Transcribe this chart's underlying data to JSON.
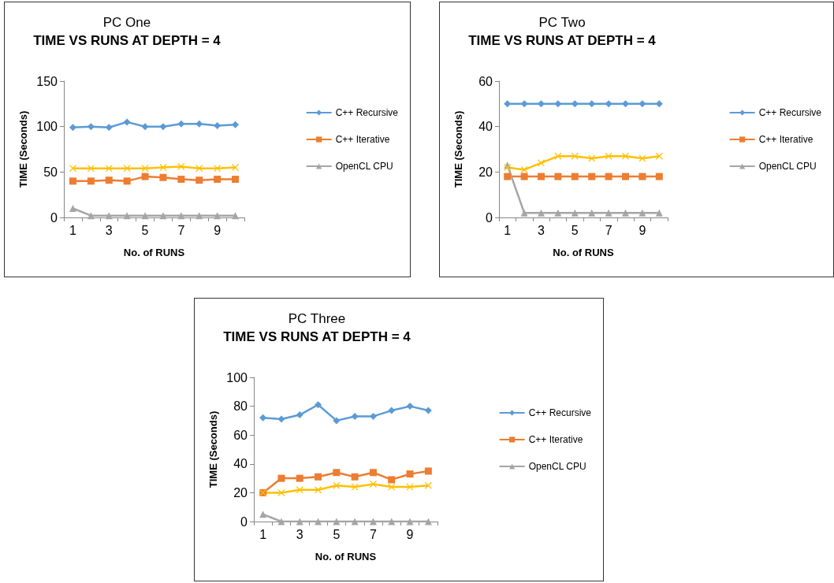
{
  "chart_data": [
    {
      "type": "line",
      "title": "PC One",
      "subtitle": "TIME VS RUNS AT DEPTH = 4",
      "xlabel": "No. of RUNS",
      "ylabel": "TIME (Seconds)",
      "categories": [
        "1",
        null,
        "3",
        null,
        "5",
        null,
        "7",
        null,
        "9",
        null
      ],
      "ylim": [
        0,
        150
      ],
      "yticks": [
        0,
        50,
        100,
        150
      ],
      "grid": false,
      "legend": "right",
      "series": [
        {
          "name": "C++ Recursive",
          "color": "#5b9bd5",
          "marker": "diamond",
          "values": [
            99,
            100,
            99,
            105,
            100,
            100,
            103,
            103,
            101,
            102
          ]
        },
        {
          "name": "C++ Iterative",
          "color": "#ed7d31",
          "marker": "square",
          "values": [
            40,
            40,
            41,
            40,
            45,
            44,
            42,
            41,
            42,
            42
          ]
        },
        {
          "name": "OpenCL CPU",
          "color": "#a5a5a5",
          "marker": "triangle",
          "values": [
            10,
            2,
            2,
            2,
            2,
            2,
            2,
            2,
            2,
            2
          ]
        },
        {
          "color": "#ffc000",
          "marker": "cross",
          "values": [
            54,
            54,
            54,
            54,
            54,
            55,
            56,
            54,
            54,
            55
          ]
        }
      ]
    },
    {
      "type": "line",
      "title": "PC Two",
      "subtitle": "TIME VS RUNS AT DEPTH = 4",
      "xlabel": "No. of RUNS",
      "ylabel": "TIME (Seconds)",
      "categories": [
        "1",
        null,
        "3",
        null,
        "5",
        null,
        "7",
        null,
        "9",
        null
      ],
      "ylim": [
        0,
        60
      ],
      "yticks": [
        0,
        20,
        40,
        60
      ],
      "grid": false,
      "legend": "right",
      "series": [
        {
          "name": "C++ Recursive",
          "color": "#5b9bd5",
          "marker": "diamond",
          "values": [
            50,
            50,
            50,
            50,
            50,
            50,
            50,
            50,
            50,
            50
          ]
        },
        {
          "name": "C++ Iterative",
          "color": "#ed7d31",
          "marker": "square",
          "values": [
            18,
            18,
            18,
            18,
            18,
            18,
            18,
            18,
            18,
            18
          ]
        },
        {
          "name": "OpenCL CPU",
          "color": "#a5a5a5",
          "marker": "triangle",
          "values": [
            23,
            2,
            2,
            2,
            2,
            2,
            2,
            2,
            2,
            2
          ]
        },
        {
          "color": "#ffc000",
          "marker": "cross",
          "values": [
            22,
            21,
            24,
            27,
            27,
            26,
            27,
            27,
            26,
            27
          ]
        }
      ]
    },
    {
      "type": "line",
      "title": "PC Three",
      "subtitle": "TIME VS RUNS AT DEPTH = 4",
      "xlabel": "No. of RUNS",
      "ylabel": "TIME (Seconds)",
      "categories": [
        "1",
        null,
        "3",
        null,
        "5",
        null,
        "7",
        null,
        "9",
        null
      ],
      "ylim": [
        0,
        100
      ],
      "yticks": [
        0,
        20,
        40,
        60,
        80,
        100
      ],
      "grid": false,
      "legend": "right",
      "series": [
        {
          "name": "C++ Recursive",
          "color": "#5b9bd5",
          "marker": "diamond",
          "values": [
            72,
            71,
            74,
            81,
            70,
            73,
            73,
            77,
            80,
            77
          ]
        },
        {
          "name": "C++ Iterative",
          "color": "#ed7d31",
          "marker": "square",
          "values": [
            20,
            30,
            30,
            31,
            34,
            31,
            34,
            29,
            33,
            35
          ]
        },
        {
          "name": "OpenCL CPU",
          "color": "#a5a5a5",
          "marker": "triangle",
          "values": [
            5,
            0,
            0,
            0,
            0,
            0,
            0,
            0,
            0,
            0
          ]
        },
        {
          "color": "#ffc000",
          "marker": "cross",
          "values": [
            20,
            20,
            22,
            22,
            25,
            24,
            26,
            24,
            24,
            25
          ]
        }
      ]
    }
  ]
}
